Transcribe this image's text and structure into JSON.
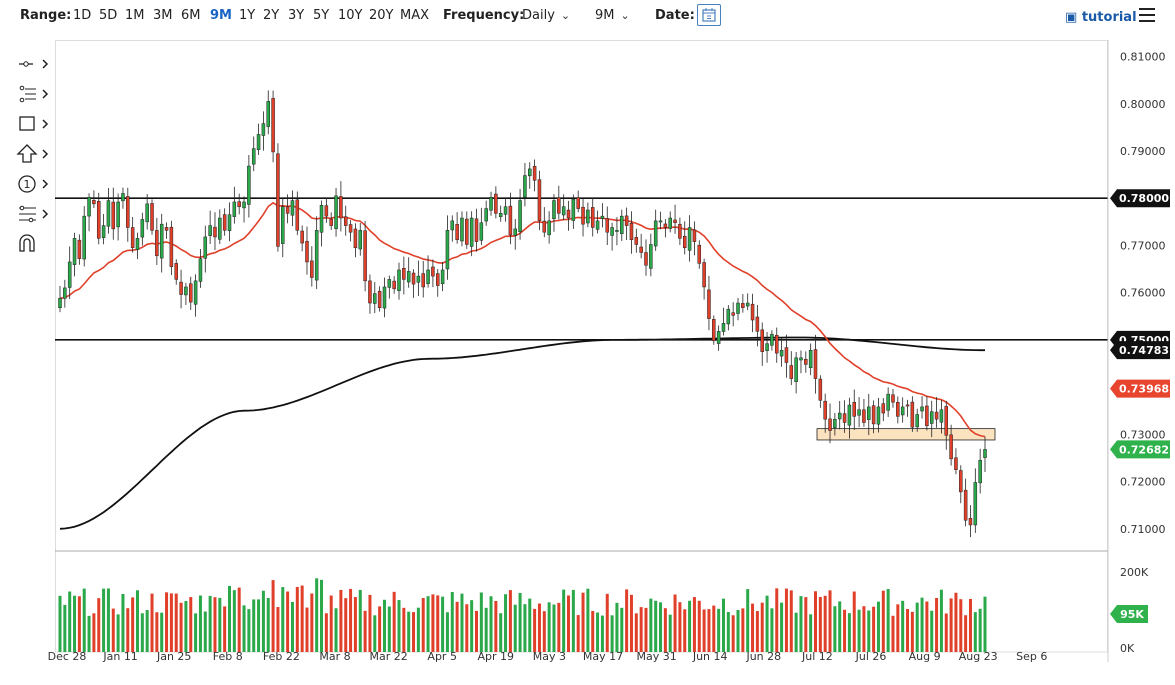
{
  "toolbar": {
    "range_label": "Range:",
    "ranges": [
      "1D",
      "5D",
      "1M",
      "3M",
      "6M",
      "9M",
      "1Y",
      "2Y",
      "3Y",
      "5Y",
      "10Y",
      "20Y",
      "MAX"
    ],
    "active_range": "9M",
    "frequency_label": "Frequency:",
    "frequency_value": "Daily",
    "period_value": "9M",
    "date_label": "Date:",
    "tutorial_label": "tutorial"
  },
  "tools": [
    "crosshair-icon",
    "trendline-icon",
    "rectangle-icon",
    "arrow-up-icon",
    "number-marker-icon",
    "fib-icon",
    "magnet-icon"
  ],
  "colors": {
    "up": "#2aa84a",
    "down": "#e0402a",
    "ma50": "#e0402a",
    "ma200": "#111111",
    "zone": "#fbe3c0"
  },
  "chart_data": {
    "type": "candlestick",
    "x_ticks": [
      "Dec 28",
      "Jan 11",
      "Jan 25",
      "Feb 8",
      "Feb 22",
      "Mar 8",
      "Mar 22",
      "Apr 5",
      "Apr 19",
      "May 3",
      "May 17",
      "May 31",
      "Jun 14",
      "Jun 28",
      "Jul 12",
      "Jul 26",
      "Aug 9",
      "Aug 23",
      "Sep 6"
    ],
    "y_ticks": [
      "0.81000",
      "0.80000",
      "0.79000",
      "0.78000",
      "0.77000",
      "0.76000",
      "0.75000",
      "0.74000",
      "0.73000",
      "0.72000",
      "0.71000"
    ],
    "ylim": [
      0.7055,
      0.8135
    ],
    "price_labels": [
      {
        "text": "0.78000",
        "value": 0.78,
        "style": "dark"
      },
      {
        "text": "0.75000",
        "value": 0.75,
        "style": "dark"
      },
      {
        "text": "0.74783",
        "value": 0.74783,
        "style": "dark"
      },
      {
        "text": "0.73968",
        "value": 0.73968,
        "style": "red"
      },
      {
        "text": "0.72682",
        "value": 0.72682,
        "style": "green"
      }
    ],
    "horizontal_lines": [
      0.78,
      0.75
    ],
    "support_zone": [
      0.7288,
      0.7312
    ],
    "closes": [
      0.7588,
      0.761,
      0.7665,
      0.7715,
      0.7672,
      0.7762,
      0.7802,
      0.7788,
      0.7715,
      0.7742,
      0.7795,
      0.7735,
      0.7792,
      0.781,
      0.7738,
      0.7695,
      0.7715,
      0.7755,
      0.7788,
      0.7732,
      0.7678,
      0.7745,
      0.7732,
      0.7655,
      0.7628,
      0.7596,
      0.7612,
      0.758,
      0.7625,
      0.7672,
      0.7718,
      0.7742,
      0.7718,
      0.7758,
      0.7732,
      0.7765,
      0.7792,
      0.7782,
      0.7792,
      0.7868,
      0.7905,
      0.7935,
      0.7958,
      0.8005,
      0.7898,
      0.7698,
      0.7782,
      0.7768,
      0.7795,
      0.7732,
      0.7705,
      0.7665,
      0.7632,
      0.7732,
      0.7785,
      0.7762,
      0.7742,
      0.7805,
      0.7758,
      0.7742,
      0.7728,
      0.7695,
      0.7732,
      0.7625,
      0.7578,
      0.7598,
      0.7568,
      0.7612,
      0.7628,
      0.7608,
      0.7648,
      0.7628,
      0.7645,
      0.7618,
      0.7635,
      0.7612,
      0.7648,
      0.7635,
      0.7615,
      0.7648,
      0.7732,
      0.7752,
      0.7712,
      0.7758,
      0.7702,
      0.7758,
      0.7708,
      0.7748,
      0.7778,
      0.7802,
      0.7768,
      0.7768,
      0.7782,
      0.7722,
      0.7735,
      0.7795,
      0.7848,
      0.7862,
      0.7838,
      0.7752,
      0.7728,
      0.7752,
      0.7795,
      0.7768,
      0.7782,
      0.7758,
      0.7798,
      0.7778,
      0.7745,
      0.7775,
      0.7738,
      0.7752,
      0.7762,
      0.7728,
      0.7738,
      0.7732,
      0.7762,
      0.7742,
      0.7712,
      0.7702,
      0.7685,
      0.7658,
      0.7702,
      0.7752,
      0.7752,
      0.7738,
      0.7758,
      0.7748,
      0.7715,
      0.7695,
      0.7738,
      0.7708,
      0.7662,
      0.7612,
      0.7545,
      0.7498,
      0.7518,
      0.7535,
      0.7565,
      0.7552,
      0.7578,
      0.7568,
      0.7578,
      0.7542,
      0.7518,
      0.7475,
      0.7492,
      0.7512,
      0.7472,
      0.7478,
      0.7452,
      0.7418,
      0.7462,
      0.7462,
      0.7448,
      0.7478,
      0.7418,
      0.7372,
      0.7332,
      0.7308,
      0.7332,
      0.7345,
      0.7325,
      0.7362,
      0.7338,
      0.7352,
      0.7325,
      0.7358,
      0.7322,
      0.7358,
      0.7345,
      0.7385,
      0.7368,
      0.7338,
      0.7358,
      0.7362,
      0.7315,
      0.7342,
      0.7358,
      0.7318,
      0.7348,
      0.7332,
      0.7352,
      0.7298,
      0.7248,
      0.7225,
      0.7178,
      0.7118,
      0.7108,
      0.7198,
      0.7245,
      0.7268
    ],
    "volume_ticks": [
      "200K",
      "0K"
    ],
    "volume_last_label": "95K",
    "volume_max": 250000
  }
}
